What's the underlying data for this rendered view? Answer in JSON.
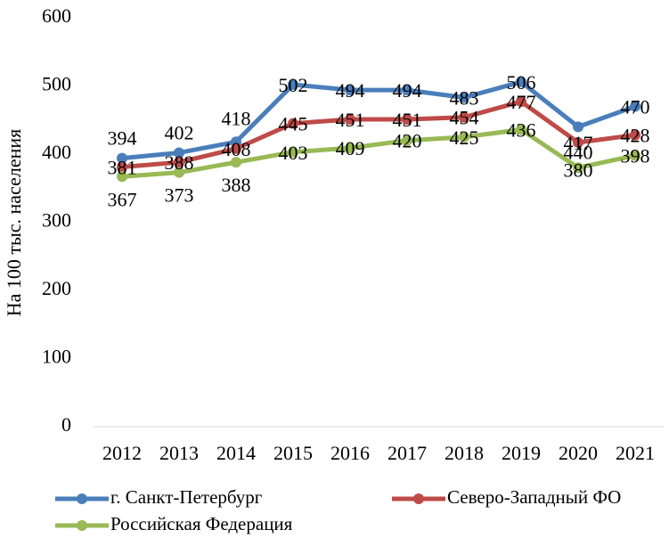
{
  "chart_data": {
    "type": "line",
    "y_label": "На 100 тыс. населения",
    "categories": [
      "2012",
      "2013",
      "2014",
      "2015",
      "2016",
      "2017",
      "2018",
      "2019",
      "2020",
      "2021"
    ],
    "series": [
      {
        "name": "г. Санкт-Петербург",
        "color": "#4a7ebb",
        "values": [
          394,
          402,
          418,
          502,
          494,
          494,
          483,
          506,
          440,
          470
        ]
      },
      {
        "name": "Северо-Западный ФО",
        "color": "#be4b48",
        "values": [
          381,
          388,
          408,
          445,
          451,
          451,
          454,
          477,
          417,
          428
        ]
      },
      {
        "name": "Российская Федерация",
        "color": "#98b954",
        "values": [
          367,
          373,
          388,
          403,
          409,
          420,
          425,
          436,
          380,
          398
        ]
      }
    ],
    "ylim": [
      0,
      600
    ],
    "yticks": [
      0,
      100,
      200,
      300,
      400,
      500,
      600
    ],
    "grid": false,
    "legend": "bottom"
  }
}
